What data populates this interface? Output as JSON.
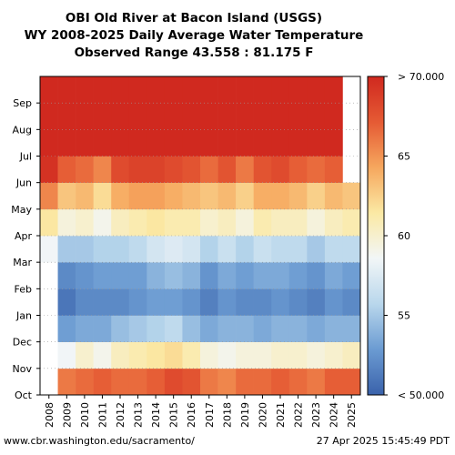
{
  "chart_data": {
    "type": "heatmap",
    "title": [
      "OBI Old River at Bacon Island (USGS)",
      "WY 2008-2025 Daily Average Water Temperature",
      "Observed Range 43.558 : 81.175 F"
    ],
    "xlabel": "",
    "ylabel": "",
    "x_categories": [
      "2008",
      "2009",
      "2010",
      "2011",
      "2012",
      "2013",
      "2014",
      "2015",
      "2016",
      "2017",
      "2018",
      "2019",
      "2020",
      "2021",
      "2022",
      "2023",
      "2024",
      "2025"
    ],
    "y_categories": [
      "Oct",
      "Nov",
      "Dec",
      "Jan",
      "Feb",
      "Mar",
      "Apr",
      "May",
      "Jun",
      "Jul",
      "Aug",
      "Sep"
    ],
    "value_unit": "F",
    "color_range": [
      50,
      70
    ],
    "colorbar_ticks": [
      "< 50.000",
      "55",
      "60",
      "65",
      "> 70.000"
    ],
    "colormap": [
      "#3a62ab",
      "#6b9bd2",
      "#b9d7ec",
      "#f2f6f7",
      "#fbe9a4",
      "#f6a75e",
      "#e55a34",
      "#d0291f"
    ],
    "monthly_values": [
      [
        null,
        null,
        null,
        null,
        null,
        58.5,
        61.5,
        65.5,
        69.5,
        75,
        76,
        73
      ],
      [
        66,
        58.5,
        53,
        51,
        52,
        55,
        59.5,
        63,
        67,
        75,
        76,
        73
      ],
      [
        66.5,
        60,
        53.5,
        52,
        52.5,
        55,
        60,
        63.5,
        66.5,
        74,
        75.5,
        72.5
      ],
      [
        67,
        59,
        53.5,
        52,
        53,
        55.5,
        59,
        62,
        65.5,
        73.5,
        75,
        72
      ],
      [
        66.5,
        60.5,
        54.5,
        52,
        53,
        55.5,
        60.5,
        64,
        68,
        74.5,
        76,
        73
      ],
      [
        66.5,
        61,
        55,
        52.5,
        53,
        56,
        61,
        64.5,
        68.5,
        75,
        76,
        73
      ],
      [
        67,
        61.5,
        55.5,
        53,
        54,
        57,
        61.5,
        64.5,
        68.5,
        75,
        76.5,
        73.5
      ],
      [
        68,
        62,
        56,
        53,
        54.5,
        57.5,
        61,
        64,
        68,
        75,
        76.5,
        74
      ],
      [
        67.5,
        61,
        54.5,
        52.5,
        54,
        57,
        61,
        63.5,
        67.5,
        74.5,
        76,
        73.5
      ],
      [
        66,
        59.5,
        53.5,
        51.5,
        52.5,
        55.5,
        60,
        63,
        66.5,
        74.5,
        76,
        73
      ],
      [
        65.5,
        59,
        54,
        52.5,
        53.5,
        56.5,
        60.5,
        63.5,
        67.5,
        74.5,
        76,
        73
      ],
      [
        66.5,
        59.5,
        54,
        52,
        53,
        55.5,
        59.5,
        62.5,
        66,
        74,
        75.5,
        72.5
      ],
      [
        66.5,
        59.5,
        53.5,
        52,
        53.5,
        56.5,
        61,
        64,
        67.5,
        75,
        76,
        73
      ],
      [
        67,
        60,
        54,
        52.5,
        53.5,
        56,
        60.5,
        64,
        68,
        75,
        76,
        73
      ],
      [
        66.5,
        60,
        54,
        52,
        53,
        56,
        60.5,
        63.5,
        67,
        74.5,
        76,
        73
      ],
      [
        66,
        59.5,
        53.5,
        51.5,
        52.5,
        55,
        59.5,
        62.5,
        66.5,
        74.5,
        76,
        73
      ],
      [
        67,
        60,
        54,
        52.5,
        53.5,
        56,
        60.5,
        63.5,
        67,
        74.5,
        76,
        73
      ],
      [
        67,
        60.5,
        54,
        52,
        53,
        56,
        61,
        63,
        null,
        null,
        null,
        null
      ]
    ]
  },
  "footer": {
    "left": "www.cbr.washington.edu/sacramento/",
    "right": "27 Apr 2025 15:45:49 PDT"
  }
}
